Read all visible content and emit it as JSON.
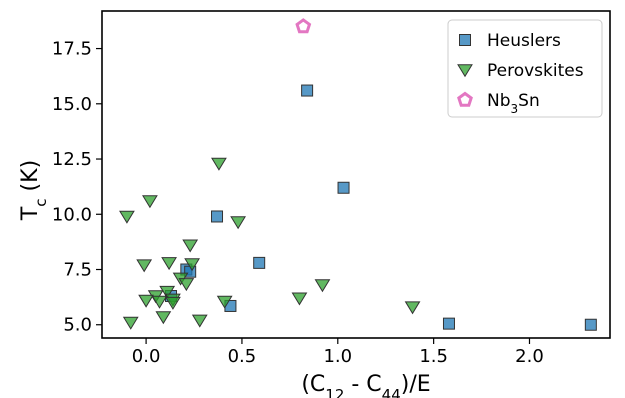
{
  "chart_data": {
    "type": "scatter",
    "xlabel": "(C12 - C44)/E",
    "ylabel": "Tc (K)",
    "xlim": [
      -0.23,
      2.42
    ],
    "ylim": [
      4.4,
      19.2
    ],
    "x_ticks": [
      0.0,
      0.5,
      1.0,
      1.5,
      2.0
    ],
    "x_tick_labels": [
      "0.0",
      "0.5",
      "1.0",
      "1.5",
      "2.0"
    ],
    "y_ticks": [
      5.0,
      7.5,
      10.0,
      12.5,
      15.0,
      17.5
    ],
    "y_tick_labels": [
      "5.0",
      "7.5",
      "10.0",
      "12.5",
      "15.0",
      "17.5"
    ],
    "grid": false,
    "legend_position": "top-right",
    "series": [
      {
        "name": "Heuslers",
        "marker": "square",
        "color": "#1f77b4",
        "points": [
          {
            "x": 0.84,
            "y": 15.6
          },
          {
            "x": 1.03,
            "y": 11.2
          },
          {
            "x": 0.37,
            "y": 9.9
          },
          {
            "x": 0.59,
            "y": 7.8
          },
          {
            "x": 0.21,
            "y": 7.5
          },
          {
            "x": 0.23,
            "y": 7.4
          },
          {
            "x": 0.13,
            "y": 6.3
          },
          {
            "x": 0.44,
            "y": 5.85
          },
          {
            "x": 1.58,
            "y": 5.05
          },
          {
            "x": 2.32,
            "y": 5.0
          }
        ]
      },
      {
        "name": "Perovskites",
        "marker": "triangle-down",
        "color": "#2ca02c",
        "points": [
          {
            "x": 0.38,
            "y": 12.3
          },
          {
            "x": 0.02,
            "y": 10.6
          },
          {
            "x": -0.1,
            "y": 9.9
          },
          {
            "x": 0.48,
            "y": 9.65
          },
          {
            "x": 0.23,
            "y": 8.6
          },
          {
            "x": 0.12,
            "y": 7.8
          },
          {
            "x": 0.24,
            "y": 7.75
          },
          {
            "x": -0.01,
            "y": 7.7
          },
          {
            "x": 0.18,
            "y": 7.1
          },
          {
            "x": 0.21,
            "y": 6.85
          },
          {
            "x": 0.92,
            "y": 6.8
          },
          {
            "x": 0.11,
            "y": 6.5
          },
          {
            "x": 0.05,
            "y": 6.3
          },
          {
            "x": 0.8,
            "y": 6.2
          },
          {
            "x": 0.14,
            "y": 6.15
          },
          {
            "x": 0.0,
            "y": 6.1
          },
          {
            "x": 0.07,
            "y": 6.05
          },
          {
            "x": 0.41,
            "y": 6.05
          },
          {
            "x": 0.14,
            "y": 6.0
          },
          {
            "x": 1.39,
            "y": 5.8
          },
          {
            "x": 0.09,
            "y": 5.35
          },
          {
            "x": 0.28,
            "y": 5.2
          },
          {
            "x": -0.08,
            "y": 5.1
          }
        ]
      },
      {
        "name": "Nb3Sn",
        "marker": "pentagon-open",
        "color": "#e377c2",
        "points": [
          {
            "x": 0.82,
            "y": 18.5
          }
        ]
      }
    ]
  }
}
